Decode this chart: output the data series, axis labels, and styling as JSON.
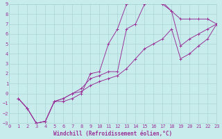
{
  "xlabel": "Windchill (Refroidissement éolien,°C)",
  "ylabel": "",
  "background_color": "#c8ecec",
  "grid_color": "#aad4d4",
  "line_color": "#993399",
  "xlim": [
    0,
    23
  ],
  "ylim": [
    -3,
    9
  ],
  "xticks": [
    0,
    1,
    2,
    3,
    4,
    5,
    6,
    7,
    8,
    9,
    10,
    11,
    12,
    13,
    14,
    15,
    16,
    17,
    18,
    19,
    20,
    21,
    22,
    23
  ],
  "yticks": [
    -3,
    -2,
    -1,
    0,
    1,
    2,
    3,
    4,
    5,
    6,
    7,
    8,
    9
  ],
  "series1_x": [
    1,
    2,
    3,
    4,
    5,
    6,
    7,
    8,
    9,
    10,
    11,
    12,
    13,
    14,
    15,
    16,
    17,
    18,
    19,
    20,
    21,
    22,
    23
  ],
  "series1_y": [
    -0.5,
    -1.5,
    -3.0,
    -2.8,
    -0.8,
    -0.8,
    -0.5,
    0.0,
    2.0,
    2.2,
    5.0,
    6.5,
    9.0,
    9.3,
    9.3,
    9.2,
    9.2,
    8.3,
    7.5,
    7.5,
    7.5,
    7.5,
    7.0
  ],
  "series2_x": [
    1,
    2,
    3,
    4,
    5,
    6,
    7,
    8,
    9,
    10,
    11,
    12,
    13,
    14,
    15,
    16,
    17,
    18,
    19,
    20,
    21,
    22,
    23
  ],
  "series2_y": [
    -0.5,
    -1.5,
    -3.0,
    -2.8,
    -0.8,
    -0.5,
    0.0,
    0.5,
    1.5,
    1.8,
    2.2,
    2.2,
    6.5,
    7.0,
    9.0,
    9.3,
    9.0,
    8.3,
    4.8,
    5.5,
    6.0,
    6.5,
    7.0
  ],
  "series3_x": [
    1,
    2,
    3,
    4,
    5,
    6,
    7,
    8,
    9,
    10,
    11,
    12,
    13,
    14,
    15,
    16,
    17,
    18,
    19,
    20,
    21,
    22,
    23
  ],
  "series3_y": [
    -0.5,
    -1.5,
    -3.0,
    -2.8,
    -0.8,
    -0.5,
    0.0,
    0.2,
    0.8,
    1.2,
    1.5,
    1.8,
    2.5,
    3.5,
    4.5,
    5.0,
    5.5,
    6.5,
    3.5,
    4.0,
    4.8,
    5.5,
    7.0
  ],
  "marker": "+",
  "linewidth": 0.7,
  "markersize": 3.0,
  "markeredgewidth": 0.7,
  "tick_fontsize": 5,
  "xlabel_fontsize": 5.5
}
